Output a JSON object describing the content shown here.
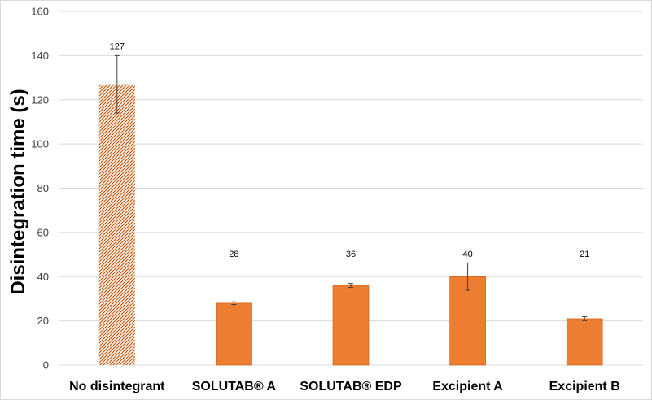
{
  "chart_data": {
    "type": "bar",
    "title": "",
    "xlabel": "",
    "ylabel": "Disintegration time (s)",
    "ylim": [
      0,
      160
    ],
    "yticks": [
      0,
      20,
      40,
      60,
      80,
      100,
      120,
      140,
      160
    ],
    "grid": "horizontal",
    "categories": [
      "No disintegrant",
      "SOLUTAB® A",
      "SOLUTAB® EDP",
      "Excipient A",
      "Excipient B"
    ],
    "values": [
      127,
      28,
      36,
      40,
      21
    ],
    "data_labels": [
      "127",
      "28",
      "36",
      "40",
      "21"
    ],
    "error": [
      13,
      0.6,
      0.9,
      6.2,
      0.9
    ],
    "colors": {
      "bar": "#ED7D31",
      "bar_border": "#C55A11",
      "hatch": "#C55A11",
      "grid": "#d9d9d9",
      "error_bar": "#404040"
    },
    "bar_styles": [
      "hatched",
      "solid",
      "solid",
      "solid",
      "solid"
    ]
  }
}
